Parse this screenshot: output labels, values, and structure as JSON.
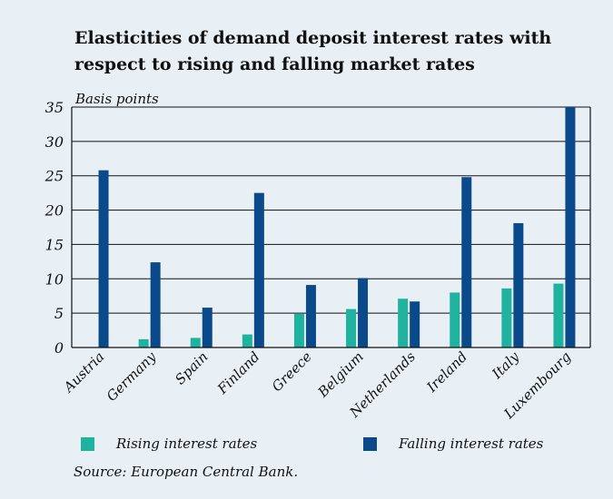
{
  "chart_data": {
    "type": "bar",
    "title": "Elasticities of demand deposit interest rates with respect to rising and falling market rates",
    "ylabel": "Basis points",
    "xlabel": "",
    "ylim": [
      0,
      35
    ],
    "yticks": [
      0,
      5,
      10,
      15,
      20,
      25,
      30,
      35
    ],
    "grid": true,
    "legend_position": "bottom",
    "categories": [
      "Austria",
      "Germany",
      "Spain",
      "Finland",
      "Greece",
      "Belgium",
      "Netherlands",
      "Ireland",
      "Italy",
      "Luxembourg"
    ],
    "series": [
      {
        "name": "Rising interest rates",
        "color": "#1fb39f",
        "values": [
          0,
          1.2,
          1.4,
          1.9,
          4.9,
          5.6,
          7.1,
          8.0,
          8.6,
          9.3
        ]
      },
      {
        "name": "Falling interest rates",
        "color": "#0a4a8a",
        "values": [
          25.8,
          12.4,
          5.8,
          22.5,
          9.1,
          10.1,
          6.7,
          24.8,
          18.1,
          35.0
        ]
      }
    ]
  },
  "source": "Source: European Central Bank."
}
